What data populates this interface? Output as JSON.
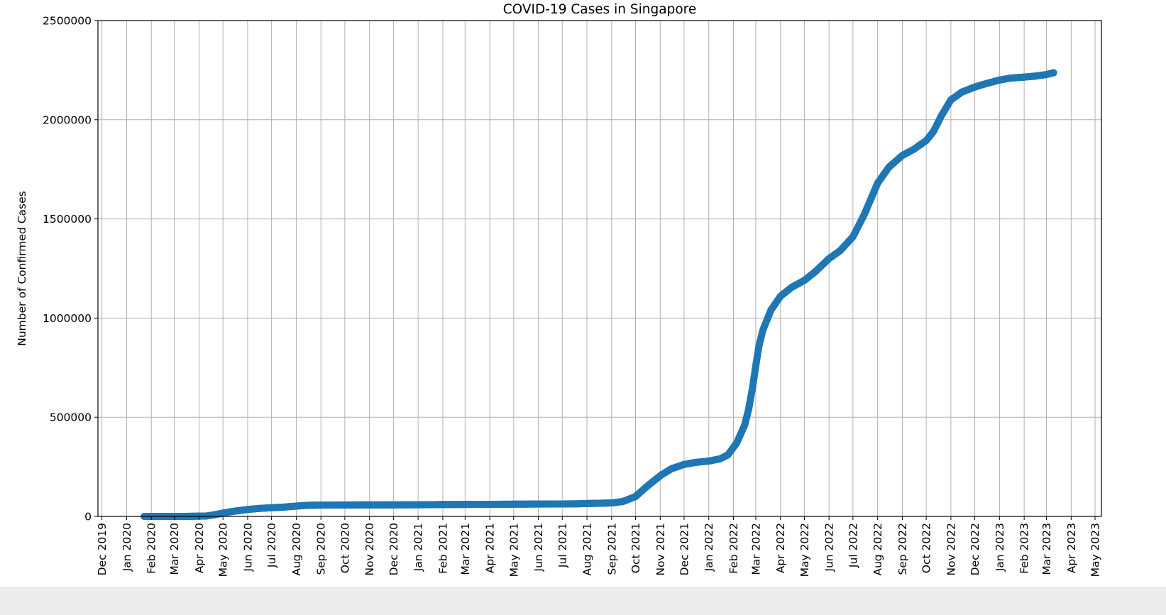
{
  "chart_data": {
    "type": "scatter",
    "title": "COVID-19 Cases in Singapore",
    "xlabel": "",
    "ylabel": "Number of Confirmed Cases",
    "x_type": "date",
    "xlim": [
      "2019-11-26",
      "2023-05-09"
    ],
    "ylim": [
      0,
      2500000
    ],
    "grid": true,
    "marker_color": "#1f77b4",
    "y_ticks": [
      {
        "value": 0,
        "label": "0"
      },
      {
        "value": 500000,
        "label": "500000"
      },
      {
        "value": 1000000,
        "label": "1000000"
      },
      {
        "value": 1500000,
        "label": "1500000"
      },
      {
        "value": 2000000,
        "label": "2000000"
      },
      {
        "value": 2500000,
        "label": "2500000"
      }
    ],
    "x_ticks": [
      {
        "date": "2019-12-01",
        "label": "Dec 2019"
      },
      {
        "date": "2020-01-01",
        "label": "Jan 2020"
      },
      {
        "date": "2020-02-01",
        "label": "Feb 2020"
      },
      {
        "date": "2020-03-01",
        "label": "Mar 2020"
      },
      {
        "date": "2020-04-01",
        "label": "Apr 2020"
      },
      {
        "date": "2020-05-01",
        "label": "May 2020"
      },
      {
        "date": "2020-06-01",
        "label": "Jun 2020"
      },
      {
        "date": "2020-07-01",
        "label": "Jul 2020"
      },
      {
        "date": "2020-08-01",
        "label": "Aug 2020"
      },
      {
        "date": "2020-09-01",
        "label": "Sep 2020"
      },
      {
        "date": "2020-10-01",
        "label": "Oct 2020"
      },
      {
        "date": "2020-11-01",
        "label": "Nov 2020"
      },
      {
        "date": "2020-12-01",
        "label": "Dec 2020"
      },
      {
        "date": "2021-01-01",
        "label": "Jan 2021"
      },
      {
        "date": "2021-02-01",
        "label": "Feb 2021"
      },
      {
        "date": "2021-03-01",
        "label": "Mar 2021"
      },
      {
        "date": "2021-04-01",
        "label": "Apr 2021"
      },
      {
        "date": "2021-05-01",
        "label": "May 2021"
      },
      {
        "date": "2021-06-01",
        "label": "Jun 2021"
      },
      {
        "date": "2021-07-01",
        "label": "Jul 2021"
      },
      {
        "date": "2021-08-01",
        "label": "Aug 2021"
      },
      {
        "date": "2021-09-01",
        "label": "Sep 2021"
      },
      {
        "date": "2021-10-01",
        "label": "Oct 2021"
      },
      {
        "date": "2021-11-01",
        "label": "Nov 2021"
      },
      {
        "date": "2021-12-01",
        "label": "Dec 2021"
      },
      {
        "date": "2022-01-01",
        "label": "Jan 2022"
      },
      {
        "date": "2022-02-01",
        "label": "Feb 2022"
      },
      {
        "date": "2022-03-01",
        "label": "Mar 2022"
      },
      {
        "date": "2022-04-01",
        "label": "Apr 2022"
      },
      {
        "date": "2022-05-01",
        "label": "May 2022"
      },
      {
        "date": "2022-06-01",
        "label": "Jun 2022"
      },
      {
        "date": "2022-07-01",
        "label": "Jul 2022"
      },
      {
        "date": "2022-08-01",
        "label": "Aug 2022"
      },
      {
        "date": "2022-09-01",
        "label": "Sep 2022"
      },
      {
        "date": "2022-10-01",
        "label": "Oct 2022"
      },
      {
        "date": "2022-11-01",
        "label": "Nov 2022"
      },
      {
        "date": "2022-12-01",
        "label": "Dec 2022"
      },
      {
        "date": "2023-01-01",
        "label": "Jan 2023"
      },
      {
        "date": "2023-02-01",
        "label": "Feb 2023"
      },
      {
        "date": "2023-03-01",
        "label": "Mar 2023"
      },
      {
        "date": "2023-04-01",
        "label": "Apr 2023"
      },
      {
        "date": "2023-05-01",
        "label": "May 2023"
      }
    ],
    "series": [
      {
        "points": [
          {
            "x": "2020-01-23",
            "y": 1
          },
          {
            "x": "2020-02-15",
            "y": 70
          },
          {
            "x": "2020-03-15",
            "y": 220
          },
          {
            "x": "2020-04-10",
            "y": 2000
          },
          {
            "x": "2020-04-20",
            "y": 8000
          },
          {
            "x": "2020-05-01",
            "y": 17000
          },
          {
            "x": "2020-05-15",
            "y": 26000
          },
          {
            "x": "2020-06-01",
            "y": 35000
          },
          {
            "x": "2020-06-15",
            "y": 40000
          },
          {
            "x": "2020-07-01",
            "y": 44000
          },
          {
            "x": "2020-07-15",
            "y": 46500
          },
          {
            "x": "2020-08-01",
            "y": 52000
          },
          {
            "x": "2020-08-15",
            "y": 56000
          },
          {
            "x": "2020-09-01",
            "y": 57000
          },
          {
            "x": "2020-10-01",
            "y": 57800
          },
          {
            "x": "2020-11-01",
            "y": 58000
          },
          {
            "x": "2020-12-01",
            "y": 58300
          },
          {
            "x": "2021-01-01",
            "y": 58600
          },
          {
            "x": "2021-01-15",
            "y": 59000
          },
          {
            "x": "2021-02-01",
            "y": 60000
          },
          {
            "x": "2021-03-01",
            "y": 60200
          },
          {
            "x": "2021-04-01",
            "y": 60800
          },
          {
            "x": "2021-05-01",
            "y": 61500
          },
          {
            "x": "2021-06-01",
            "y": 62300
          },
          {
            "x": "2021-07-01",
            "y": 62800
          },
          {
            "x": "2021-07-20",
            "y": 63500
          },
          {
            "x": "2021-08-01",
            "y": 65000
          },
          {
            "x": "2021-08-15",
            "y": 66000
          },
          {
            "x": "2021-09-01",
            "y": 68000
          },
          {
            "x": "2021-09-15",
            "y": 75000
          },
          {
            "x": "2021-10-01",
            "y": 100000
          },
          {
            "x": "2021-10-15",
            "y": 150000
          },
          {
            "x": "2021-11-01",
            "y": 205000
          },
          {
            "x": "2021-11-15",
            "y": 240000
          },
          {
            "x": "2021-12-01",
            "y": 262000
          },
          {
            "x": "2021-12-15",
            "y": 272000
          },
          {
            "x": "2022-01-01",
            "y": 279000
          },
          {
            "x": "2022-01-15",
            "y": 290000
          },
          {
            "x": "2022-01-25",
            "y": 310000
          },
          {
            "x": "2022-02-05",
            "y": 370000
          },
          {
            "x": "2022-02-15",
            "y": 460000
          },
          {
            "x": "2022-02-20",
            "y": 540000
          },
          {
            "x": "2022-02-25",
            "y": 650000
          },
          {
            "x": "2022-03-01",
            "y": 760000
          },
          {
            "x": "2022-03-05",
            "y": 860000
          },
          {
            "x": "2022-03-10",
            "y": 940000
          },
          {
            "x": "2022-03-20",
            "y": 1040000
          },
          {
            "x": "2022-04-01",
            "y": 1110000
          },
          {
            "x": "2022-04-15",
            "y": 1155000
          },
          {
            "x": "2022-05-01",
            "y": 1190000
          },
          {
            "x": "2022-05-15",
            "y": 1235000
          },
          {
            "x": "2022-06-01",
            "y": 1300000
          },
          {
            "x": "2022-06-15",
            "y": 1340000
          },
          {
            "x": "2022-07-01",
            "y": 1410000
          },
          {
            "x": "2022-07-15",
            "y": 1520000
          },
          {
            "x": "2022-08-01",
            "y": 1680000
          },
          {
            "x": "2022-08-15",
            "y": 1760000
          },
          {
            "x": "2022-09-01",
            "y": 1820000
          },
          {
            "x": "2022-09-15",
            "y": 1850000
          },
          {
            "x": "2022-10-01",
            "y": 1895000
          },
          {
            "x": "2022-10-10",
            "y": 1940000
          },
          {
            "x": "2022-10-20",
            "y": 2020000
          },
          {
            "x": "2022-11-01",
            "y": 2100000
          },
          {
            "x": "2022-11-15",
            "y": 2140000
          },
          {
            "x": "2022-12-01",
            "y": 2165000
          },
          {
            "x": "2022-12-15",
            "y": 2182000
          },
          {
            "x": "2023-01-01",
            "y": 2200000
          },
          {
            "x": "2023-01-15",
            "y": 2210000
          },
          {
            "x": "2023-02-01",
            "y": 2215000
          },
          {
            "x": "2023-02-15",
            "y": 2220000
          },
          {
            "x": "2023-03-01",
            "y": 2228000
          },
          {
            "x": "2023-03-10",
            "y": 2237000
          }
        ]
      }
    ]
  }
}
